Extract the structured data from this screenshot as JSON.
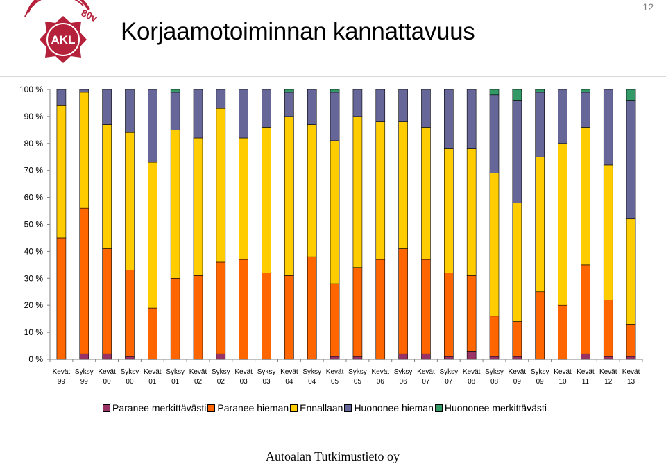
{
  "header": {
    "title": "Korjaamotoiminnan kannattavuus",
    "page_number": "12",
    "logo": {
      "text": "AKL",
      "badge": "80v"
    }
  },
  "footer": {
    "text": "Autoalan Tutkimustieto oy"
  },
  "colors": {
    "paranee_merkittavasti": "#993366",
    "paranee_hieman": "#ff6600",
    "ennallaan": "#ffcc00",
    "huononee_hieman": "#666699",
    "huononee_merkittavasti": "#339966",
    "logo": "#b5203a"
  },
  "chart_data": {
    "type": "bar",
    "stacked": true,
    "percent": true,
    "title": "",
    "xlabel": "",
    "ylabel": "",
    "ylim": [
      0,
      100
    ],
    "yticks": [
      "0 %",
      "10 %",
      "20 %",
      "30 %",
      "40 %",
      "50 %",
      "60 %",
      "70 %",
      "80 %",
      "90 %",
      "100 %"
    ],
    "categories": [
      [
        "Kevät",
        "99"
      ],
      [
        "Syksy",
        "99"
      ],
      [
        "Kevät",
        "00"
      ],
      [
        "Syksy",
        "00"
      ],
      [
        "Kevät",
        "01"
      ],
      [
        "Syksy",
        "01"
      ],
      [
        "Kevät",
        "02"
      ],
      [
        "Syksy",
        "02"
      ],
      [
        "Kevät",
        "03"
      ],
      [
        "Syksy",
        "03"
      ],
      [
        "Kevät",
        "04"
      ],
      [
        "Syksy",
        "04"
      ],
      [
        "Kevät",
        "05"
      ],
      [
        "Syksy",
        "05"
      ],
      [
        "Kevät",
        "06"
      ],
      [
        "Syksy",
        "06"
      ],
      [
        "Kevät",
        "07"
      ],
      [
        "Syksy",
        "07"
      ],
      [
        "Kevät",
        "08"
      ],
      [
        "Syksy",
        "08"
      ],
      [
        "Kevät",
        "09"
      ],
      [
        "Syksy",
        "09"
      ],
      [
        "Kevät",
        "10"
      ],
      [
        "Kevät",
        "11"
      ],
      [
        "Kevät",
        "12"
      ],
      [
        "Kevät",
        "13"
      ]
    ],
    "legend_position": "bottom",
    "series": [
      {
        "name": "Paranee merkittävästi",
        "color": "#993366",
        "values": [
          0,
          2,
          2,
          1,
          0,
          0,
          0,
          2,
          0,
          0,
          0,
          0,
          1,
          1,
          0,
          2,
          2,
          1,
          3,
          1,
          1,
          0,
          0,
          2,
          1,
          1
        ]
      },
      {
        "name": "Paranee hieman",
        "color": "#ff6600",
        "values": [
          45,
          54,
          39,
          32,
          19,
          30,
          31,
          34,
          37,
          32,
          31,
          38,
          27,
          33,
          37,
          39,
          35,
          31,
          28,
          15,
          13,
          25,
          20,
          33,
          21,
          12
        ]
      },
      {
        "name": "Ennallaan",
        "color": "#ffcc00",
        "values": [
          49,
          43,
          46,
          51,
          54,
          55,
          51,
          57,
          45,
          54,
          59,
          49,
          53,
          56,
          51,
          47,
          49,
          46,
          47,
          53,
          44,
          50,
          60,
          51,
          50,
          39
        ]
      },
      {
        "name": "Huononee hieman",
        "color": "#666699",
        "values": [
          6,
          1,
          13,
          16,
          27,
          14,
          18,
          7,
          18,
          14,
          9,
          13,
          18,
          10,
          12,
          12,
          14,
          22,
          22,
          29,
          38,
          24,
          20,
          13,
          28,
          44
        ]
      },
      {
        "name": "Huononee merkittävästi",
        "color": "#339966",
        "values": [
          0,
          0,
          0,
          0,
          0,
          1,
          0,
          0,
          0,
          0,
          1,
          0,
          1,
          0,
          0,
          0,
          0,
          0,
          0,
          2,
          4,
          1,
          0,
          1,
          0,
          4
        ]
      }
    ]
  }
}
